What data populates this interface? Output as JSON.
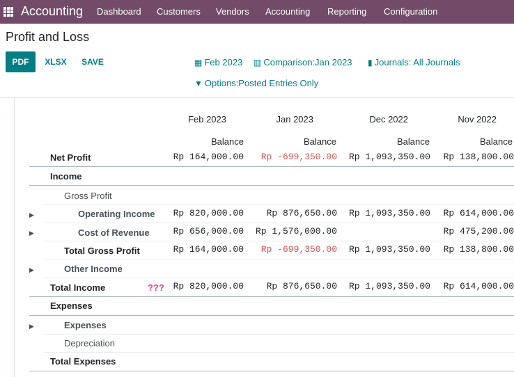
{
  "app": {
    "name": "Accounting"
  },
  "nav": [
    "Dashboard",
    "Customers",
    "Vendors",
    "Accounting",
    "Reporting",
    "Configuration"
  ],
  "page_title": "Profit and Loss",
  "buttons": {
    "pdf": "PDF",
    "xlsx": "XLSX",
    "save": "SAVE"
  },
  "filters": {
    "date": "Feb 2023",
    "comparison": "Comparison:Jan 2023",
    "journals": "Journals: All Journals",
    "options": "Options:Posted Entries Only"
  },
  "columns": [
    "Feb 2023",
    "Jan 2023",
    "Dec 2022",
    "Nov 2022"
  ],
  "subheader": "Balance",
  "warning": "???",
  "rows": [
    {
      "label": "Net Profit",
      "values": [
        "Rp 164,000.00",
        "Rp -699,350.00",
        "Rp 1,093,350.00",
        "Rp 138,800.00"
      ]
    },
    {
      "label": "Income",
      "values": [
        "",
        "",
        "",
        ""
      ]
    },
    {
      "label": "Gross Profit",
      "values": [
        "",
        "",
        "",
        ""
      ]
    },
    {
      "label": "Operating Income",
      "values": [
        "Rp 820,000.00",
        "Rp 876,650.00",
        "Rp 1,093,350.00",
        "Rp 614,000.00"
      ]
    },
    {
      "label": "Cost of Revenue",
      "values": [
        "Rp 656,000.00",
        "Rp 1,576,000.00",
        "",
        "Rp 475,200.00"
      ]
    },
    {
      "label": "Total Gross Profit",
      "values": [
        "Rp 164,000.00",
        "Rp -699,350.00",
        "Rp 1,093,350.00",
        "Rp 138,800.00"
      ]
    },
    {
      "label": "Other Income",
      "values": [
        "",
        "",
        "",
        ""
      ]
    },
    {
      "label": "Total Income",
      "values": [
        "Rp 820,000.00",
        "Rp 876,650.00",
        "Rp 1,093,350.00",
        "Rp 614,000.00"
      ]
    },
    {
      "label": "Expenses",
      "values": [
        "",
        "",
        "",
        ""
      ]
    },
    {
      "label": "Expenses",
      "values": [
        "",
        "",
        "",
        ""
      ]
    },
    {
      "label": "Depreciation",
      "values": [
        "",
        "",
        "",
        ""
      ]
    },
    {
      "label": "Total Expenses",
      "values": [
        "",
        "",
        "",
        ""
      ]
    }
  ]
}
